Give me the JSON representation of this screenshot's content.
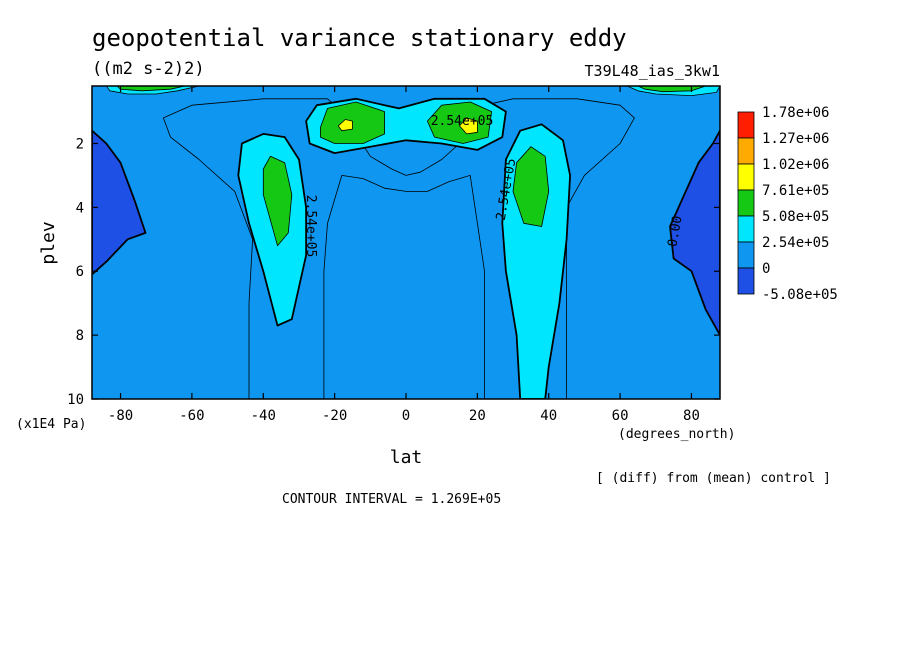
{
  "chart_data": {
    "type": "heatmap",
    "title": "geopotential variance stationary eddy",
    "units": "((m2 s-2)2)",
    "experiment": "T39L48_ias_3kw1",
    "xlabel": "lat",
    "xunits": "(degrees_north)",
    "ylabel": "plev",
    "yunits": "(x1E4 Pa)",
    "xlim": [
      -88,
      88
    ],
    "ylim": [
      10,
      0.2
    ],
    "x_ticks": [
      -80,
      -60,
      -40,
      -20,
      0,
      20,
      40,
      60,
      80
    ],
    "y_ticks": [
      2,
      4,
      6,
      8,
      10
    ],
    "contour_interval_label": "CONTOUR INTERVAL = 1.269E+05",
    "note": "[ (diff) from (mean) control ]",
    "contour_labels": [
      "2.54e+05",
      "2.54e+05",
      "2.54e+05",
      "0.00"
    ],
    "colorbar": {
      "levels": [
        "-5.08e+05",
        "0",
        "2.54e+05",
        "5.08e+05",
        "7.61e+05",
        "1.02e+06",
        "1.27e+06",
        "1.78e+06"
      ],
      "colors": [
        "#1e50e6",
        "#0f96f0",
        "#00e6ff",
        "#14c814",
        "#ffff00",
        "#ffaa00",
        "#ff1e00"
      ]
    },
    "regions": [
      {
        "name": "background",
        "level": "0 to 2.54e+05",
        "color": "#0f96f0",
        "points": [
          [
            -88,
            0.2
          ],
          [
            88,
            0.2
          ],
          [
            88,
            10
          ],
          [
            -88,
            10
          ]
        ]
      },
      {
        "name": "sh-band-outer",
        "level": "~1.3e+05",
        "color": "#0f96f0",
        "stroke": true,
        "points": [
          [
            -44,
            10
          ],
          [
            -44,
            7
          ],
          [
            -43,
            5
          ],
          [
            -48,
            3.5
          ],
          [
            -58,
            2.5
          ],
          [
            -66,
            1.8
          ],
          [
            -68,
            1.2
          ],
          [
            -60,
            0.8
          ],
          [
            -40,
            0.6
          ],
          [
            -22,
            0.6
          ],
          [
            -20,
            0.8
          ],
          [
            -14,
            1.7
          ],
          [
            -10,
            2.4
          ],
          [
            -4,
            2.8
          ],
          [
            0,
            3.0
          ],
          [
            4,
            2.9
          ],
          [
            10,
            2.5
          ],
          [
            18,
            1.7
          ],
          [
            22,
            0.8
          ],
          [
            30,
            0.6
          ],
          [
            48,
            0.6
          ],
          [
            60,
            0.8
          ],
          [
            64,
            1.2
          ],
          [
            60,
            2.0
          ],
          [
            50,
            3.0
          ],
          [
            45,
            4.0
          ],
          [
            45,
            5.5
          ],
          [
            45,
            10
          ],
          [
            22,
            10
          ],
          [
            22,
            6
          ],
          [
            20,
            4.5
          ],
          [
            18,
            3.0
          ],
          [
            12,
            3.2
          ],
          [
            6,
            3.5
          ],
          [
            0,
            3.5
          ],
          [
            -6,
            3.4
          ],
          [
            -12,
            3.1
          ],
          [
            -18,
            3.0
          ],
          [
            -22,
            4.5
          ],
          [
            -23,
            6
          ],
          [
            -23,
            10
          ]
        ]
      },
      {
        "name": "sh-tongue",
        "level": "2.54e+05",
        "color": "#00e6ff",
        "stroke": true,
        "bold": true,
        "points": [
          [
            -36,
            7.7
          ],
          [
            -40,
            6.0
          ],
          [
            -44,
            4.5
          ],
          [
            -47,
            3.0
          ],
          [
            -46,
            2.0
          ],
          [
            -40,
            1.7
          ],
          [
            -34,
            1.8
          ],
          [
            -30,
            2.5
          ],
          [
            -28,
            4.0
          ],
          [
            -28,
            5.5
          ],
          [
            -32,
            7.5
          ]
        ]
      },
      {
        "name": "nh-tongue",
        "level": "2.54e+05",
        "color": "#00e6ff",
        "stroke": true,
        "bold": true,
        "points": [
          [
            32,
            10
          ],
          [
            31,
            8.0
          ],
          [
            28,
            6.0
          ],
          [
            27,
            4.5
          ],
          [
            28,
            2.5
          ],
          [
            32,
            1.6
          ],
          [
            38,
            1.4
          ],
          [
            44,
            1.9
          ],
          [
            46,
            3.0
          ],
          [
            45,
            5.0
          ],
          [
            43,
            7.0
          ],
          [
            40,
            9.0
          ],
          [
            39,
            10
          ]
        ]
      },
      {
        "name": "upper-eq-blob",
        "level": "2.54e+05",
        "color": "#00e6ff",
        "stroke": true,
        "bold": true,
        "points": [
          [
            -28,
            1.3
          ],
          [
            -25,
            0.8
          ],
          [
            -14,
            0.6
          ],
          [
            -2,
            0.9
          ],
          [
            8,
            0.6
          ],
          [
            22,
            0.6
          ],
          [
            28,
            1.0
          ],
          [
            27,
            1.8
          ],
          [
            20,
            2.2
          ],
          [
            10,
            2.0
          ],
          [
            0,
            1.9
          ],
          [
            -10,
            2.1
          ],
          [
            -20,
            2.3
          ],
          [
            -27,
            2.0
          ]
        ]
      },
      {
        "name": "sh-core",
        "level": "5.08e+05",
        "color": "#14c814",
        "stroke": true,
        "points": [
          [
            -36,
            5.2
          ],
          [
            -40,
            3.6
          ],
          [
            -40,
            2.8
          ],
          [
            -38,
            2.4
          ],
          [
            -34,
            2.6
          ],
          [
            -32,
            3.6
          ],
          [
            -33,
            4.8
          ]
        ]
      },
      {
        "name": "nh-core",
        "level": "5.08e+05",
        "color": "#14c814",
        "stroke": true,
        "points": [
          [
            33,
            4.5
          ],
          [
            30,
            3.5
          ],
          [
            31,
            2.6
          ],
          [
            35,
            2.1
          ],
          [
            39,
            2.4
          ],
          [
            40,
            3.5
          ],
          [
            38,
            4.6
          ]
        ]
      },
      {
        "name": "sh-upper-core",
        "level": "5.08e+05",
        "color": "#14c814",
        "stroke": true,
        "points": [
          [
            -24,
            1.5
          ],
          [
            -22,
            0.9
          ],
          [
            -14,
            0.7
          ],
          [
            -6,
            1.0
          ],
          [
            -6,
            1.7
          ],
          [
            -12,
            2.0
          ],
          [
            -20,
            2.0
          ],
          [
            -24,
            1.8
          ]
        ]
      },
      {
        "name": "nh-upper-core",
        "level": "5.08e+05",
        "color": "#14c814",
        "stroke": true,
        "points": [
          [
            6,
            1.3
          ],
          [
            10,
            0.8
          ],
          [
            18,
            0.7
          ],
          [
            24,
            1.0
          ],
          [
            23,
            1.8
          ],
          [
            16,
            2.0
          ],
          [
            8,
            1.8
          ]
        ]
      },
      {
        "name": "sh-upper-peak",
        "level": "7.61e+05",
        "color": "#ffff00",
        "stroke": true,
        "points": [
          [
            -19,
            1.45
          ],
          [
            -17,
            1.25
          ],
          [
            -15,
            1.3
          ],
          [
            -15,
            1.55
          ],
          [
            -18,
            1.6
          ]
        ]
      },
      {
        "name": "nh-upper-peak",
        "level": "7.61e+05",
        "color": "#ffff00",
        "stroke": true,
        "points": [
          [
            15,
            1.45
          ],
          [
            17,
            1.2
          ],
          [
            20,
            1.3
          ],
          [
            20,
            1.65
          ],
          [
            17,
            1.7
          ]
        ]
      },
      {
        "name": "sh-pole-negative",
        "level": "-5.08e+05 to 0",
        "color": "#1e50e6",
        "stroke": true,
        "bold": true,
        "points": [
          [
            -88,
            6.1
          ],
          [
            -84,
            5.7
          ],
          [
            -78,
            5.0
          ],
          [
            -73,
            4.8
          ],
          [
            -76,
            3.8
          ],
          [
            -80,
            2.6
          ],
          [
            -84,
            2.0
          ],
          [
            -88,
            1.6
          ]
        ]
      },
      {
        "name": "nh-pole-negative",
        "level": "-5.08e+05 to 0",
        "color": "#1e50e6",
        "stroke": true,
        "bold": true,
        "points": [
          [
            88,
            1.6
          ],
          [
            86,
            2.0
          ],
          [
            82,
            2.6
          ],
          [
            78,
            3.6
          ],
          [
            74,
            4.6
          ],
          [
            75,
            5.6
          ],
          [
            80,
            6.0
          ],
          [
            84,
            7.2
          ],
          [
            88,
            8.0
          ]
        ]
      },
      {
        "name": "sh-cap",
        "level": "2.54e+05",
        "color": "#00e6ff",
        "stroke": true,
        "points": [
          [
            -84,
            0.2
          ],
          [
            -58,
            0.2
          ],
          [
            -64,
            0.35
          ],
          [
            -70,
            0.45
          ],
          [
            -78,
            0.45
          ],
          [
            -83,
            0.35
          ]
        ]
      },
      {
        "name": "sh-cap-core",
        "level": "5.08e+05",
        "color": "#14c814",
        "stroke": true,
        "points": [
          [
            -81,
            0.2
          ],
          [
            -62,
            0.2
          ],
          [
            -66,
            0.3
          ],
          [
            -74,
            0.35
          ],
          [
            -80,
            0.3
          ]
        ]
      },
      {
        "name": "nh-cap",
        "level": "2.54e+05",
        "color": "#00e6ff",
        "stroke": true,
        "points": [
          [
            62,
            0.2
          ],
          [
            88,
            0.2
          ],
          [
            87,
            0.4
          ],
          [
            80,
            0.5
          ],
          [
            70,
            0.45
          ],
          [
            65,
            0.35
          ]
        ]
      },
      {
        "name": "nh-cap-core",
        "level": "5.08e+05",
        "color": "#14c814",
        "stroke": true,
        "points": [
          [
            65,
            0.2
          ],
          [
            84,
            0.2
          ],
          [
            80,
            0.35
          ],
          [
            72,
            0.38
          ],
          [
            67,
            0.3
          ]
        ]
      }
    ]
  }
}
